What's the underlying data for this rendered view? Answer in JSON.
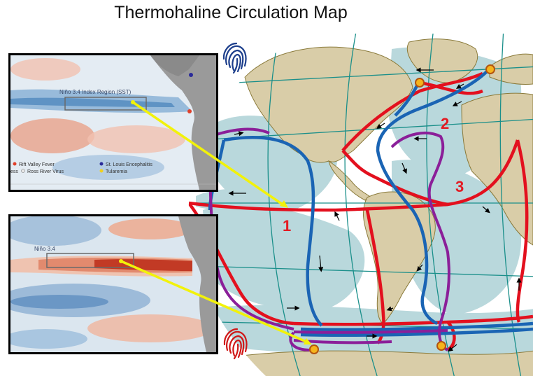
{
  "title": "Thermohaline Circulation Map",
  "colors": {
    "ocean_shade": "#b9d8dc",
    "land": "#d9cda8",
    "warm_current": "#e3101e",
    "cold_current": "#1a64b4",
    "deep_current": "#8b1f99",
    "connector": "#f2f20a",
    "marker": "#f5b41c",
    "number_label": "#e31b23",
    "grid": "#1a8f8a"
  },
  "region_labels": [
    "1",
    "2",
    "3"
  ],
  "inset_top": {
    "region_label": "Niño 3.4 Index Region (SST)",
    "legend": [
      {
        "label": "Rift Valley Fever",
        "color": "#e0402a"
      },
      {
        "label": "St. Louis Encephalitis",
        "color": "#2a2a9a"
      },
      {
        "label": "Ross River Virus",
        "color": "#e8e8e8"
      },
      {
        "label": "Tularemia",
        "color": "#f0d020"
      }
    ],
    "partial_text": "ess"
  },
  "inset_bottom": {
    "region_label": "Niño 3.4"
  },
  "icons": {
    "top": "fingerprint-icon",
    "bottom": "fingerprint-icon"
  }
}
